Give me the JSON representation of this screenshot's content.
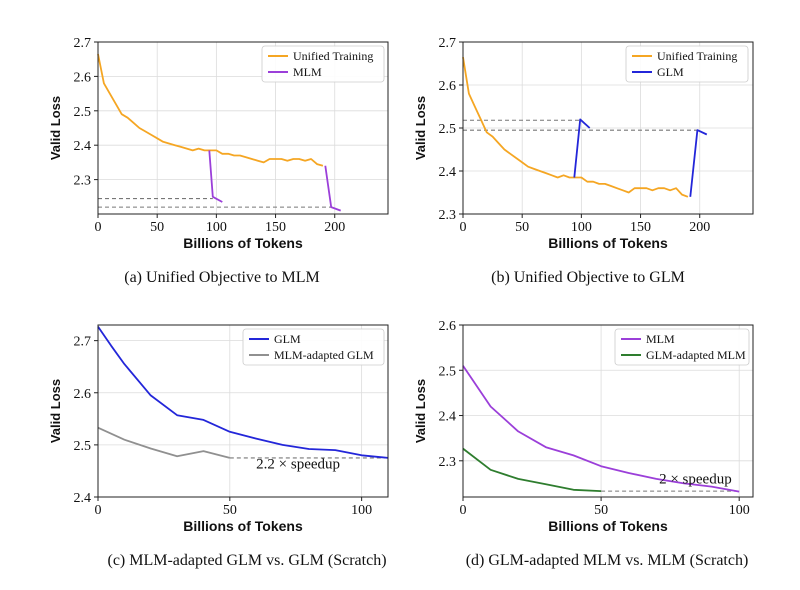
{
  "chart_data": [
    {
      "type": "line",
      "panel": "a",
      "caption": "(a) Unified Objective to MLM",
      "xlabel": "Billions of Tokens",
      "ylabel": "Valid Loss",
      "xlim": [
        0,
        245
      ],
      "ylim": [
        2.2,
        2.7
      ],
      "xticks": [
        0,
        50,
        100,
        150,
        200
      ],
      "yticks": [
        2.3,
        2.4,
        2.5,
        2.6,
        2.7
      ],
      "ytick_labels": [
        "2.3",
        "2.4",
        "2.5",
        "2.6",
        "2.7"
      ],
      "legend": "top-right",
      "grid": true,
      "series": [
        {
          "name": "Unified Training",
          "color": "#f5a623",
          "points": [
            [
              0,
              2.665
            ],
            [
              5,
              2.58
            ],
            [
              10,
              2.55
            ],
            [
              15,
              2.52
            ],
            [
              20,
              2.49
            ],
            [
              25,
              2.48
            ],
            [
              30,
              2.465
            ],
            [
              35,
              2.45
            ],
            [
              40,
              2.44
            ],
            [
              45,
              2.43
            ],
            [
              50,
              2.42
            ],
            [
              55,
              2.41
            ],
            [
              60,
              2.405
            ],
            [
              65,
              2.4
            ],
            [
              70,
              2.395
            ],
            [
              75,
              2.39
            ],
            [
              80,
              2.385
            ],
            [
              85,
              2.39
            ],
            [
              90,
              2.385
            ],
            [
              95,
              2.385
            ],
            [
              100,
              2.385
            ],
            [
              105,
              2.375
            ],
            [
              110,
              2.375
            ],
            [
              115,
              2.37
            ],
            [
              120,
              2.37
            ],
            [
              125,
              2.365
            ],
            [
              130,
              2.36
            ],
            [
              135,
              2.355
            ],
            [
              140,
              2.35
            ],
            [
              145,
              2.36
            ],
            [
              150,
              2.36
            ],
            [
              155,
              2.36
            ],
            [
              160,
              2.355
            ],
            [
              165,
              2.36
            ],
            [
              170,
              2.36
            ],
            [
              175,
              2.355
            ],
            [
              180,
              2.36
            ],
            [
              185,
              2.345
            ],
            [
              190,
              2.34
            ]
          ]
        },
        {
          "name": "MLM",
          "color": "#9b3fd9",
          "segments": [
            [
              [
                94,
                2.385
              ],
              [
                97,
                2.25
              ],
              [
                105,
                2.235
              ]
            ],
            [
              [
                192,
                2.34
              ],
              [
                197,
                2.22
              ],
              [
                205,
                2.21
              ]
            ]
          ]
        }
      ],
      "reference_lines": [
        {
          "y": 2.245,
          "from_x": 0,
          "to_x": 97
        },
        {
          "y": 2.22,
          "from_x": 0,
          "to_x": 197
        }
      ]
    },
    {
      "type": "line",
      "panel": "b",
      "caption": "(b) Unified Objective to GLM",
      "xlabel": "Billions of Tokens",
      "ylabel": "Valid Loss",
      "xlim": [
        0,
        245
      ],
      "ylim": [
        2.3,
        2.7
      ],
      "xticks": [
        0,
        50,
        100,
        150,
        200
      ],
      "yticks": [
        2.3,
        2.4,
        2.5,
        2.6,
        2.7
      ],
      "ytick_labels": [
        "2.3",
        "2.4",
        "2.5",
        "2.6",
        "2.7"
      ],
      "legend": "top-right",
      "grid": true,
      "series": [
        {
          "name": "Unified Training",
          "color": "#f5a623",
          "points": [
            [
              0,
              2.665
            ],
            [
              5,
              2.58
            ],
            [
              10,
              2.55
            ],
            [
              15,
              2.52
            ],
            [
              20,
              2.49
            ],
            [
              25,
              2.48
            ],
            [
              30,
              2.465
            ],
            [
              35,
              2.45
            ],
            [
              40,
              2.44
            ],
            [
              45,
              2.43
            ],
            [
              50,
              2.42
            ],
            [
              55,
              2.41
            ],
            [
              60,
              2.405
            ],
            [
              65,
              2.4
            ],
            [
              70,
              2.395
            ],
            [
              75,
              2.39
            ],
            [
              80,
              2.385
            ],
            [
              85,
              2.39
            ],
            [
              90,
              2.385
            ],
            [
              95,
              2.385
            ],
            [
              100,
              2.385
            ],
            [
              105,
              2.375
            ],
            [
              110,
              2.375
            ],
            [
              115,
              2.37
            ],
            [
              120,
              2.37
            ],
            [
              125,
              2.365
            ],
            [
              130,
              2.36
            ],
            [
              135,
              2.355
            ],
            [
              140,
              2.35
            ],
            [
              145,
              2.36
            ],
            [
              150,
              2.36
            ],
            [
              155,
              2.36
            ],
            [
              160,
              2.355
            ],
            [
              165,
              2.36
            ],
            [
              170,
              2.36
            ],
            [
              175,
              2.355
            ],
            [
              180,
              2.36
            ],
            [
              185,
              2.345
            ],
            [
              190,
              2.34
            ]
          ]
        },
        {
          "name": "GLM",
          "color": "#2326d9",
          "segments": [
            [
              [
                94,
                2.385
              ],
              [
                99,
                2.52
              ],
              [
                107,
                2.5
              ]
            ],
            [
              [
                192,
                2.34
              ],
              [
                198,
                2.495
              ],
              [
                206,
                2.485
              ]
            ]
          ]
        }
      ],
      "reference_lines": [
        {
          "y": 2.518,
          "from_x": 0,
          "to_x": 99
        },
        {
          "y": 2.495,
          "from_x": 0,
          "to_x": 198
        }
      ]
    },
    {
      "type": "line",
      "panel": "c",
      "caption": "(c) MLM-adapted GLM vs. GLM (Scratch)",
      "xlabel": "Billions of Tokens",
      "ylabel": "Valid Loss",
      "xlim": [
        0,
        110
      ],
      "ylim": [
        2.4,
        2.73
      ],
      "xticks": [
        0,
        50,
        100
      ],
      "yticks": [
        2.4,
        2.5,
        2.6,
        2.7
      ],
      "ytick_labels": [
        "2.4",
        "2.5",
        "2.6",
        "2.7"
      ],
      "legend": "top-right",
      "grid": true,
      "series": [
        {
          "name": "GLM",
          "color": "#2326d9",
          "points": [
            [
              0,
              2.727
            ],
            [
              5,
              2.69
            ],
            [
              10,
              2.655
            ],
            [
              20,
              2.595
            ],
            [
              30,
              2.557
            ],
            [
              40,
              2.548
            ],
            [
              50,
              2.525
            ],
            [
              60,
              2.512
            ],
            [
              70,
              2.5
            ],
            [
              80,
              2.492
            ],
            [
              90,
              2.49
            ],
            [
              100,
              2.48
            ],
            [
              110,
              2.475
            ]
          ]
        },
        {
          "name": "MLM-adapted GLM",
          "color": "#909090",
          "points": [
            [
              0,
              2.533
            ],
            [
              10,
              2.51
            ],
            [
              20,
              2.493
            ],
            [
              30,
              2.478
            ],
            [
              40,
              2.488
            ],
            [
              50,
              2.475
            ]
          ]
        }
      ],
      "reference_lines": [
        {
          "y": 2.475,
          "from_x": 50,
          "to_x": 110
        }
      ],
      "annotations": [
        {
          "text": "2.2 × speedup",
          "x": 60,
          "y": 2.455
        }
      ]
    },
    {
      "type": "line",
      "panel": "d",
      "caption": "(d) GLM-adapted MLM vs. MLM (Scratch)",
      "xlabel": "Billions of Tokens",
      "ylabel": "Valid Loss",
      "xlim": [
        0,
        105
      ],
      "ylim": [
        2.22,
        2.6
      ],
      "xticks": [
        0,
        50,
        100
      ],
      "yticks": [
        2.3,
        2.4,
        2.5,
        2.6
      ],
      "ytick_labels": [
        "2.3",
        "2.4",
        "2.5",
        "2.6"
      ],
      "legend": "top-left",
      "grid": true,
      "series": [
        {
          "name": "MLM",
          "color": "#9b3fd9",
          "points": [
            [
              0,
              2.51
            ],
            [
              5,
              2.465
            ],
            [
              10,
              2.42
            ],
            [
              20,
              2.365
            ],
            [
              30,
              2.33
            ],
            [
              40,
              2.312
            ],
            [
              50,
              2.288
            ],
            [
              60,
              2.273
            ],
            [
              70,
              2.26
            ],
            [
              80,
              2.25
            ],
            [
              90,
              2.243
            ],
            [
              100,
              2.232
            ]
          ]
        },
        {
          "name": "GLM-adapted MLM",
          "color": "#2e7d2e",
          "points": [
            [
              0,
              2.327
            ],
            [
              10,
              2.28
            ],
            [
              20,
              2.26
            ],
            [
              30,
              2.248
            ],
            [
              40,
              2.236
            ],
            [
              50,
              2.233
            ]
          ]
        }
      ],
      "reference_lines": [
        {
          "y": 2.233,
          "from_x": 50,
          "to_x": 100
        }
      ],
      "annotations": [
        {
          "text": "2 × speedup",
          "x": 71,
          "y": 2.25
        }
      ]
    }
  ]
}
